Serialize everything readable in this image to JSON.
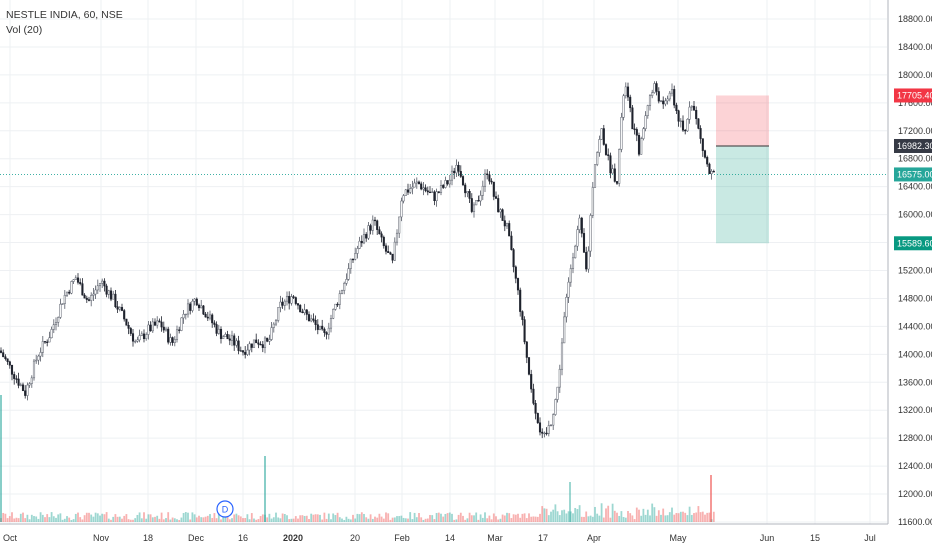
{
  "header": {
    "symbol": "NESTLE INDIA, 60, NSE",
    "indicator": "Vol (20)"
  },
  "price_axis": {
    "ticks": [
      "18800.00",
      "18400.00",
      "18000.00",
      "17600.00",
      "17200.00",
      "16800.00",
      "16400.00",
      "16000.00",
      "15600.00",
      "15200.00",
      "14800.00",
      "14400.00",
      "14000.00",
      "13600.00",
      "13200.00",
      "12800.00",
      "12400.00",
      "12000.00",
      "11600.00"
    ]
  },
  "time_axis": {
    "ticks": [
      "Oct",
      "Nov",
      "18",
      "Dec",
      "16",
      "2020",
      "20",
      "Feb",
      "14",
      "Mar",
      "17",
      "Apr",
      "May",
      "Jun",
      "15",
      "Jul"
    ]
  },
  "price_tags": {
    "stop_loss": {
      "label": "17705.40",
      "color": "#f23645"
    },
    "entry": {
      "label": "16982.30",
      "color": "#363a45"
    },
    "current": {
      "label": "16575.00",
      "color": "#26a69a"
    },
    "target": {
      "label": "15589.60",
      "color": "#089981"
    }
  },
  "dividend_marker": {
    "label": "D"
  },
  "chart_data": {
    "type": "candlestick",
    "title": "NESTLE INDIA, 60, NSE",
    "ylim": [
      11600,
      18800
    ],
    "x": [
      "Oct",
      "Nov",
      "18",
      "Dec",
      "16",
      "2020",
      "20",
      "Feb",
      "14",
      "Mar",
      "17",
      "Apr",
      "May",
      "Jun",
      "15",
      "Jul"
    ],
    "series": [
      {
        "name": "price",
        "anchors": [
          [
            "Oct",
            14050
          ],
          [
            "Oct",
            13750
          ],
          [
            "Oct",
            13450
          ],
          [
            "Oct",
            14000
          ],
          [
            "Oct",
            14300
          ],
          [
            "Oct",
            14800
          ],
          [
            "Oct",
            15100
          ],
          [
            "Oct",
            14750
          ],
          [
            "Nov",
            15050
          ],
          [
            "Nov",
            14800
          ],
          [
            "Nov",
            14500
          ],
          [
            "Nov",
            14150
          ],
          [
            "18",
            14350
          ],
          [
            "18",
            14450
          ],
          [
            "18",
            14150
          ],
          [
            "18",
            14600
          ],
          [
            "Dec",
            14800
          ],
          [
            "Dec",
            14550
          ],
          [
            "Dec",
            14300
          ],
          [
            "Dec",
            14200
          ],
          [
            "16",
            14050
          ],
          [
            "16",
            14200
          ],
          [
            "16",
            14150
          ],
          [
            "16",
            14700
          ],
          [
            "2020",
            14850
          ],
          [
            "2020",
            14600
          ],
          [
            "2020",
            14450
          ],
          [
            "2020",
            14250
          ],
          [
            "2020",
            14650
          ],
          [
            "2020",
            15050
          ],
          [
            "20",
            15450
          ],
          [
            "20",
            15700
          ],
          [
            "20",
            15900
          ],
          [
            "20",
            15550
          ],
          [
            "20",
            15300
          ],
          [
            "Feb",
            16300
          ],
          [
            "Feb",
            16450
          ],
          [
            "Feb",
            16250
          ],
          [
            "14",
            16500
          ],
          [
            "14",
            16750
          ],
          [
            "14",
            16400
          ],
          [
            "14",
            16000
          ],
          [
            "14",
            16300
          ],
          [
            "14",
            16650
          ],
          [
            "Mar",
            16200
          ],
          [
            "Mar",
            15800
          ],
          [
            "Mar",
            14800
          ],
          [
            "Mar",
            13500
          ],
          [
            "17",
            12750
          ],
          [
            "17",
            13000
          ],
          [
            "17",
            13500
          ],
          [
            "17",
            14600
          ],
          [
            "17",
            15400
          ],
          [
            "17",
            15900
          ],
          [
            "17",
            15150
          ],
          [
            "Apr",
            16700
          ],
          [
            "Apr",
            17200
          ],
          [
            "Apr",
            16700
          ],
          [
            "Apr",
            16500
          ],
          [
            "Apr",
            17900
          ],
          [
            "Apr",
            17300
          ],
          [
            "Apr",
            16900
          ],
          [
            "Apr",
            17600
          ],
          [
            "Apr",
            17850
          ],
          [
            "Apr",
            17500
          ],
          [
            "Apr",
            17800
          ],
          [
            "May",
            17400
          ],
          [
            "May",
            17100
          ],
          [
            "May",
            17700
          ],
          [
            "May",
            17300
          ],
          [
            "May",
            16900
          ],
          [
            "May",
            16575
          ]
        ]
      }
    ],
    "annotations": {
      "long_position": {
        "stop_loss": 17705.4,
        "entry": 16982.3,
        "target": 15589.6
      },
      "last_price": 16575.0
    },
    "grid": true,
    "legend": "top-left"
  }
}
